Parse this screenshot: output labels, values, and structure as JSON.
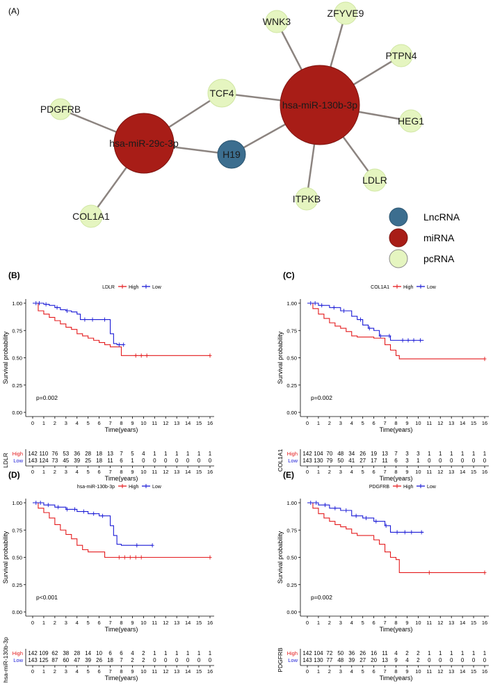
{
  "network": {
    "panel_label": "(A)",
    "nodes": [
      {
        "id": "H19",
        "label": "H19",
        "type": "LncRNA"
      },
      {
        "id": "mir29c",
        "label": "hsa-miR-29c-3p",
        "type": "miRNA"
      },
      {
        "id": "mir130b",
        "label": "hsa-miR-130b-3p",
        "type": "miRNA"
      },
      {
        "id": "TCF4",
        "label": "TCF4",
        "type": "pcRNA"
      },
      {
        "id": "PDGFRB",
        "label": "PDGFRB",
        "type": "pcRNA"
      },
      {
        "id": "COL1A1",
        "label": "COL1A1",
        "type": "pcRNA"
      },
      {
        "id": "WNK3",
        "label": "WNK3",
        "type": "pcRNA"
      },
      {
        "id": "ZFYVE9",
        "label": "ZFYVE9",
        "type": "pcRNA"
      },
      {
        "id": "PTPN4",
        "label": "PTPN4",
        "type": "pcRNA"
      },
      {
        "id": "HEG1",
        "label": "HEG1",
        "type": "pcRNA"
      },
      {
        "id": "LDLR",
        "label": "LDLR",
        "type": "pcRNA"
      },
      {
        "id": "ITPKB",
        "label": "ITPKB",
        "type": "pcRNA"
      }
    ],
    "edges": [
      [
        "H19",
        "mir29c"
      ],
      [
        "H19",
        "mir130b"
      ],
      [
        "mir29c",
        "TCF4"
      ],
      [
        "mir29c",
        "PDGFRB"
      ],
      [
        "mir29c",
        "COL1A1"
      ],
      [
        "mir130b",
        "TCF4"
      ],
      [
        "mir130b",
        "WNK3"
      ],
      [
        "mir130b",
        "ZFYVE9"
      ],
      [
        "mir130b",
        "PTPN4"
      ],
      [
        "mir130b",
        "HEG1"
      ],
      [
        "mir130b",
        "LDLR"
      ],
      [
        "mir130b",
        "ITPKB"
      ]
    ],
    "legend": [
      {
        "label": "LncRNA",
        "color": "#3c6e8f"
      },
      {
        "label": "miRNA",
        "color": "#a81d17"
      },
      {
        "label": "pcRNA",
        "color": "#e5f5c0"
      }
    ]
  },
  "chart_data": [
    {
      "type": "line",
      "panel_label": "(B)",
      "gene": "LDLR",
      "legend_title": "LDLR",
      "xlabel": "Time(years)",
      "ylabel": "Survival probability",
      "pvalue": "p=0.002",
      "xlim": [
        0,
        16
      ],
      "ylim": [
        0,
        1
      ],
      "yticks": [
        "0.00",
        "0.25",
        "0.50",
        "0.75",
        "1.00"
      ],
      "xticks": [
        "0",
        "1",
        "2",
        "3",
        "4",
        "5",
        "6",
        "7",
        "8",
        "9",
        "10",
        "11",
        "12",
        "13",
        "14",
        "15",
        "16"
      ],
      "series": [
        {
          "name": "High",
          "color": "#e41a1c",
          "x": [
            0,
            0.5,
            1,
            1.5,
            2,
            2.5,
            3,
            3.5,
            4,
            4.5,
            5,
            5.5,
            6,
            6.5,
            7,
            7.5,
            8,
            9,
            10,
            16
          ],
          "y": [
            1,
            0.93,
            0.9,
            0.87,
            0.84,
            0.81,
            0.78,
            0.76,
            0.72,
            0.7,
            0.68,
            0.66,
            0.64,
            0.62,
            0.6,
            0.6,
            0.52,
            0.52,
            0.52,
            0.52
          ],
          "censor_x": [
            9.3,
            9.8,
            10.3,
            16
          ]
        },
        {
          "name": "Low",
          "color": "#1a1ad6",
          "x": [
            0,
            1,
            1.5,
            2,
            2.5,
            3,
            3.5,
            4,
            4.3,
            5,
            6,
            7,
            7.3,
            7.6,
            8.2
          ],
          "y": [
            1,
            0.99,
            0.98,
            0.96,
            0.94,
            0.93,
            0.92,
            0.9,
            0.85,
            0.85,
            0.85,
            0.72,
            0.63,
            0.62,
            0.62
          ],
          "censor_x": [
            0.3,
            0.6,
            1.2,
            2.2,
            3.1,
            4.7,
            5.4,
            6.5,
            7.8,
            8.2
          ]
        }
      ],
      "risk_table": {
        "High": [
          "142",
          "110",
          "76",
          "53",
          "36",
          "28",
          "18",
          "13",
          "7",
          "5",
          "4",
          "1",
          "1",
          "1",
          "1",
          "1",
          "1"
        ],
        "Low": [
          "143",
          "124",
          "73",
          "45",
          "39",
          "25",
          "18",
          "11",
          "6",
          "1",
          "0",
          "0",
          "0",
          "0",
          "0",
          "0",
          "0"
        ]
      }
    },
    {
      "type": "line",
      "panel_label": "(C)",
      "gene": "COL1A1",
      "legend_title": "COL1A1",
      "xlabel": "Time(years)",
      "ylabel": "Survival probability",
      "pvalue": "p=0.002",
      "xlim": [
        0,
        16
      ],
      "ylim": [
        0,
        1
      ],
      "yticks": [
        "0.00",
        "0.25",
        "0.50",
        "0.75",
        "1.00"
      ],
      "xticks": [
        "0",
        "1",
        "2",
        "3",
        "4",
        "5",
        "6",
        "7",
        "8",
        "9",
        "10",
        "11",
        "12",
        "13",
        "14",
        "15",
        "16"
      ],
      "series": [
        {
          "name": "High",
          "color": "#e41a1c",
          "x": [
            0,
            0.5,
            1,
            1.5,
            2,
            2.5,
            3,
            3.5,
            4,
            4.5,
            5,
            6,
            7,
            7.5,
            8,
            8.3,
            9,
            16
          ],
          "y": [
            1,
            0.95,
            0.9,
            0.86,
            0.82,
            0.79,
            0.77,
            0.74,
            0.7,
            0.69,
            0.69,
            0.68,
            0.62,
            0.57,
            0.52,
            0.49,
            0.49,
            0.49
          ],
          "censor_x": [
            16
          ]
        },
        {
          "name": "Low",
          "color": "#1a1ad6",
          "x": [
            0,
            1,
            2,
            3,
            4,
            4.5,
            5,
            5.5,
            6,
            6.5,
            7,
            7.5,
            8,
            10.5
          ],
          "y": [
            1,
            0.98,
            0.96,
            0.93,
            0.88,
            0.85,
            0.8,
            0.77,
            0.75,
            0.7,
            0.7,
            0.66,
            0.66,
            0.66
          ],
          "censor_x": [
            0.3,
            0.7,
            1.3,
            2.4,
            3.3,
            4.8,
            5.6,
            6.6,
            7.4,
            8.6,
            9.1,
            9.6,
            10.2
          ]
        }
      ],
      "risk_table": {
        "High": [
          "142",
          "104",
          "70",
          "48",
          "34",
          "26",
          "19",
          "13",
          "7",
          "3",
          "3",
          "1",
          "1",
          "1",
          "1",
          "1",
          "1"
        ],
        "Low": [
          "143",
          "130",
          "79",
          "50",
          "41",
          "27",
          "17",
          "11",
          "6",
          "3",
          "1",
          "0",
          "0",
          "0",
          "0",
          "0",
          "0"
        ]
      }
    },
    {
      "type": "line",
      "panel_label": "(D)",
      "gene": "hsa-miR-130b-3p",
      "legend_title": "hsa-miR-130b-3p",
      "xlabel": "Time(years)",
      "ylabel": "Survival probability",
      "pvalue": "p<0.001",
      "xlim": [
        0,
        16
      ],
      "ylim": [
        0,
        1
      ],
      "yticks": [
        "0.00",
        "0.25",
        "0.50",
        "0.75",
        "1.00"
      ],
      "xticks": [
        "0",
        "1",
        "2",
        "3",
        "4",
        "5",
        "6",
        "7",
        "8",
        "9",
        "10",
        "11",
        "12",
        "13",
        "14",
        "15",
        "16"
      ],
      "series": [
        {
          "name": "High",
          "color": "#e41a1c",
          "x": [
            0,
            0.5,
            1,
            1.5,
            2,
            2.5,
            3,
            3.5,
            4,
            4.5,
            5,
            6,
            6.5,
            8,
            16
          ],
          "y": [
            1,
            0.95,
            0.91,
            0.86,
            0.8,
            0.75,
            0.71,
            0.67,
            0.61,
            0.57,
            0.55,
            0.55,
            0.5,
            0.5,
            0.5
          ],
          "censor_x": [
            7.8,
            8.3,
            8.8,
            9.3,
            9.8,
            16
          ]
        },
        {
          "name": "Low",
          "color": "#1a1ad6",
          "x": [
            0,
            1,
            2,
            3,
            4,
            5,
            6,
            6.5,
            7,
            7.3,
            7.6,
            8,
            10.8
          ],
          "y": [
            1,
            0.98,
            0.96,
            0.94,
            0.92,
            0.9,
            0.88,
            0.88,
            0.79,
            0.7,
            0.62,
            0.61,
            0.61
          ],
          "censor_x": [
            0.3,
            0.7,
            1.4,
            2.3,
            3.1,
            3.8,
            4.6,
            5.5,
            6.3,
            9.4,
            10.8
          ]
        }
      ],
      "risk_table": {
        "High": [
          "142",
          "109",
          "62",
          "38",
          "28",
          "14",
          "10",
          "6",
          "6",
          "4",
          "2",
          "1",
          "1",
          "1",
          "1",
          "1",
          "1"
        ],
        "Low": [
          "143",
          "125",
          "87",
          "60",
          "47",
          "39",
          "26",
          "18",
          "7",
          "2",
          "2",
          "0",
          "0",
          "0",
          "0",
          "0",
          "0"
        ]
      }
    },
    {
      "type": "line",
      "panel_label": "(E)",
      "gene": "PDGFRB",
      "legend_title": "PDGFRB",
      "xlabel": "Time(years)",
      "ylabel": "Survival probability",
      "pvalue": "p=0.002",
      "xlim": [
        0,
        16
      ],
      "ylim": [
        0,
        1
      ],
      "yticks": [
        "0.00",
        "0.25",
        "0.50",
        "0.75",
        "1.00"
      ],
      "xticks": [
        "0",
        "1",
        "2",
        "3",
        "4",
        "5",
        "6",
        "7",
        "8",
        "9",
        "10",
        "11",
        "12",
        "13",
        "14",
        "15",
        "16"
      ],
      "series": [
        {
          "name": "High",
          "color": "#e41a1c",
          "x": [
            0,
            0.5,
            1,
            1.5,
            2,
            2.5,
            3,
            3.5,
            4,
            4.5,
            5,
            6,
            6.5,
            7,
            7.5,
            8,
            8.3,
            16
          ],
          "y": [
            1,
            0.95,
            0.9,
            0.86,
            0.83,
            0.8,
            0.78,
            0.76,
            0.72,
            0.7,
            0.7,
            0.66,
            0.62,
            0.55,
            0.5,
            0.48,
            0.36,
            0.36
          ],
          "censor_x": [
            11,
            16
          ]
        },
        {
          "name": "Low",
          "color": "#1a1ad6",
          "x": [
            0,
            1,
            2,
            3,
            4,
            5,
            6,
            7,
            7.5,
            10.5
          ],
          "y": [
            1,
            0.98,
            0.95,
            0.93,
            0.88,
            0.86,
            0.83,
            0.79,
            0.73,
            0.73
          ],
          "censor_x": [
            0.3,
            0.8,
            1.6,
            2.5,
            3.5,
            4.4,
            5.3,
            6.2,
            7.1,
            8.1,
            8.8,
            9.4,
            10.3
          ]
        }
      ],
      "risk_table": {
        "High": [
          "142",
          "104",
          "72",
          "50",
          "36",
          "26",
          "16",
          "11",
          "4",
          "2",
          "2",
          "1",
          "1",
          "1",
          "1",
          "1",
          "1"
        ],
        "Low": [
          "143",
          "130",
          "77",
          "48",
          "39",
          "27",
          "20",
          "13",
          "9",
          "4",
          "2",
          "0",
          "0",
          "0",
          "0",
          "0",
          "0"
        ]
      }
    }
  ]
}
